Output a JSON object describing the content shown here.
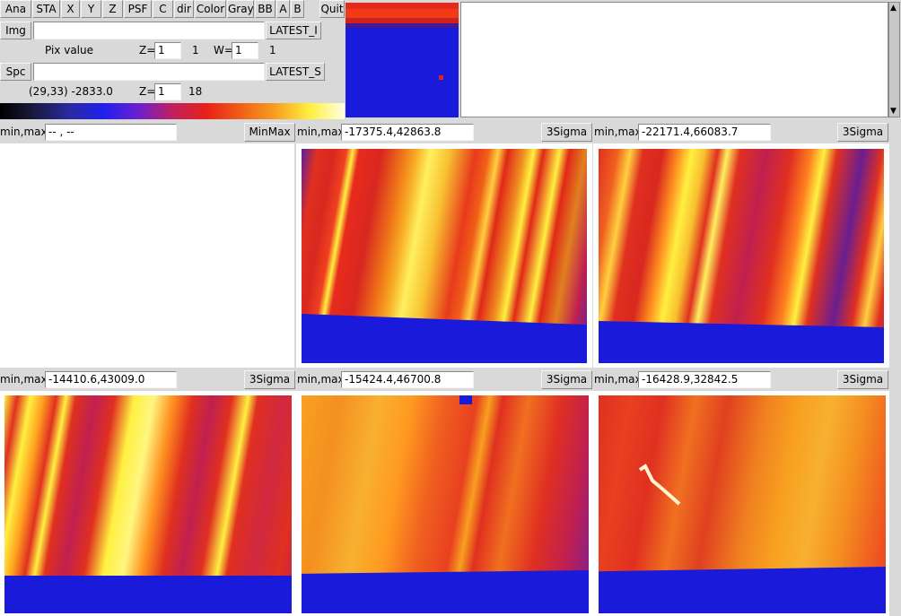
{
  "toolbar": {
    "ana": "Ana",
    "sta": "STA",
    "x": "X",
    "y": "Y",
    "z": "Z",
    "psf": "PSF",
    "c": "C",
    "dir": "dir",
    "color": "Color",
    "gray": "Gray",
    "bb": "BB",
    "a": "A",
    "b": "B",
    "quit": "Quit"
  },
  "img_row": {
    "img_label": "Img",
    "input_value": "",
    "latest_label": "LATEST_I"
  },
  "pix_row": {
    "pix_value_label": "Pix value",
    "z_label": "Z=",
    "z_value": "1",
    "z_max": "1",
    "w_label": "W=",
    "w_value": "1",
    "w_max": "1"
  },
  "spc_row": {
    "spc_label": "Spc",
    "input_value": "",
    "latest_label": "LATEST_S"
  },
  "coord_row": {
    "coord_text": "(29,33) -2833.0",
    "z_label": "Z=",
    "z_value": "1",
    "z_max": "18"
  },
  "panels": [
    {
      "minmax_label": "min,max:",
      "minmax_value": "-- , --",
      "button": "MinMax"
    },
    {
      "minmax_label": "min,max:",
      "minmax_value": "-17375.4,42863.8",
      "button": "3Sigma"
    },
    {
      "minmax_label": "min,max:",
      "minmax_value": "-22171.4,66083.7",
      "button": "3Sigma"
    },
    {
      "minmax_label": "min,max:",
      "minmax_value": "-14410.6,43009.0",
      "button": "3Sigma"
    },
    {
      "minmax_label": "min,max:",
      "minmax_value": "-15424.4,46700.8",
      "button": "3Sigma"
    },
    {
      "minmax_label": "min,max:",
      "minmax_value": "-16428.9,32842.5",
      "button": "3Sigma"
    }
  ],
  "colors": {
    "bg": "#d9d9d9",
    "blue": "#1a1adb",
    "red": "#e0281c",
    "orange": "#f47a18",
    "yellow": "#fff23a",
    "navy": "#2a1878"
  },
  "icons": {
    "scroll_up": "scroll-up-arrow-icon",
    "scroll_down": "scroll-down-arrow-icon"
  }
}
